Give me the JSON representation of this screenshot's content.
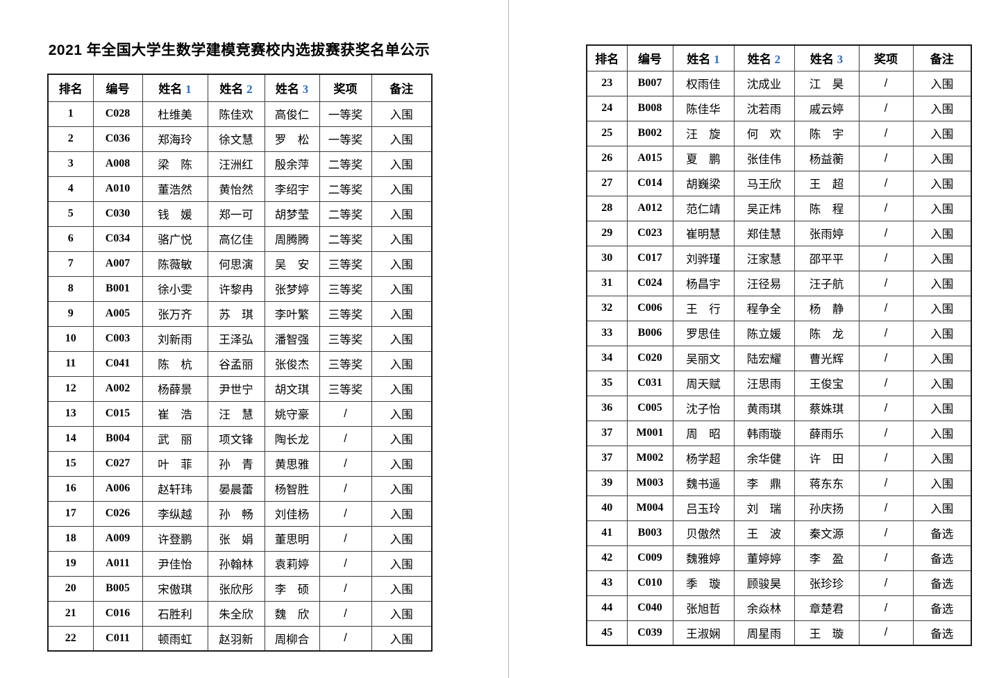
{
  "colors": {
    "header_digit_blue": "#2b6bc8",
    "grid_line": "#3c3c3c",
    "outer_border": "#1c1c1c",
    "page_divider": "#b9b9b9",
    "text": "#000000",
    "page_background": "#ffffff"
  },
  "left_page": {
    "title": "2021 年全国大学生数学建模竞赛校内选拔赛获奖名单公示",
    "columns": [
      "排名",
      "编号",
      "姓名 1",
      "姓名 2",
      "姓名 3",
      "奖项",
      "备注"
    ],
    "rows": [
      [
        "1",
        "C028",
        "杜维美",
        "陈佳欢",
        "高俊仁",
        "一等奖",
        "入围"
      ],
      [
        "2",
        "C036",
        "郑海玲",
        "徐文慧",
        "罗　松",
        "一等奖",
        "入围"
      ],
      [
        "3",
        "A008",
        "梁　陈",
        "汪洲红",
        "殷余萍",
        "二等奖",
        "入围"
      ],
      [
        "4",
        "A010",
        "董浩然",
        "黄怡然",
        "李绍宇",
        "二等奖",
        "入围"
      ],
      [
        "5",
        "C030",
        "钱　媛",
        "郑一可",
        "胡梦莹",
        "二等奖",
        "入围"
      ],
      [
        "6",
        "C034",
        "骆广悦",
        "高亿佳",
        "周腾腾",
        "二等奖",
        "入围"
      ],
      [
        "7",
        "A007",
        "陈薇敏",
        "何思演",
        "吴　安",
        "三等奖",
        "入围"
      ],
      [
        "8",
        "B001",
        "徐小雯",
        "许黎冉",
        "张梦婷",
        "三等奖",
        "入围"
      ],
      [
        "9",
        "A005",
        "张万齐",
        "苏　琪",
        "李叶繁",
        "三等奖",
        "入围"
      ],
      [
        "10",
        "C003",
        "刘新雨",
        "王泽弘",
        "潘智强",
        "三等奖",
        "入围"
      ],
      [
        "11",
        "C041",
        "陈　杭",
        "谷孟丽",
        "张俊杰",
        "三等奖",
        "入围"
      ],
      [
        "12",
        "A002",
        "杨薛景",
        "尹世宁",
        "胡文琪",
        "三等奖",
        "入围"
      ],
      [
        "13",
        "C015",
        "崔　浩",
        "汪　慧",
        "姚守豪",
        "/",
        "入围"
      ],
      [
        "14",
        "B004",
        "武　丽",
        "项文锋",
        "陶长龙",
        "/",
        "入围"
      ],
      [
        "15",
        "C027",
        "叶　菲",
        "孙　青",
        "黄思雅",
        "/",
        "入围"
      ],
      [
        "16",
        "A006",
        "赵轩玮",
        "晏晨蕾",
        "杨智胜",
        "/",
        "入围"
      ],
      [
        "17",
        "C026",
        "李纵越",
        "孙　畅",
        "刘佳杨",
        "/",
        "入围"
      ],
      [
        "18",
        "A009",
        "许登鹏",
        "张　娟",
        "董思明",
        "/",
        "入围"
      ],
      [
        "19",
        "A011",
        "尹佳怡",
        "孙翰林",
        "袁莉婷",
        "/",
        "入围"
      ],
      [
        "20",
        "B005",
        "宋傲琪",
        "张欣彤",
        "李　硕",
        "/",
        "入围"
      ],
      [
        "21",
        "C016",
        "石胜利",
        "朱全欣",
        "魏　欣",
        "/",
        "入围"
      ],
      [
        "22",
        "C011",
        "顿雨虹",
        "赵羽新",
        "周柳合",
        "/",
        "入围"
      ]
    ]
  },
  "right_page": {
    "columns": [
      "排名",
      "编号",
      "姓名 1",
      "姓名 2",
      "姓名 3",
      "奖项",
      "备注"
    ],
    "rows": [
      [
        "23",
        "B007",
        "权雨佳",
        "沈成业",
        "江　昊",
        "/",
        "入围"
      ],
      [
        "24",
        "B008",
        "陈佳华",
        "沈若雨",
        "戚云婷",
        "/",
        "入围"
      ],
      [
        "25",
        "B002",
        "汪　旋",
        "何　欢",
        "陈　宇",
        "/",
        "入围"
      ],
      [
        "26",
        "A015",
        "夏　鹏",
        "张佳伟",
        "杨益蘅",
        "/",
        "入围"
      ],
      [
        "27",
        "C014",
        "胡巍梁",
        "马王欣",
        "王　超",
        "/",
        "入围"
      ],
      [
        "28",
        "A012",
        "范仁靖",
        "吴正炜",
        "陈　程",
        "/",
        "入围"
      ],
      [
        "29",
        "C023",
        "崔明慧",
        "郑佳慧",
        "张雨婷",
        "/",
        "入围"
      ],
      [
        "30",
        "C017",
        "刘骅瑾",
        "汪家慧",
        "邵平平",
        "/",
        "入围"
      ],
      [
        "31",
        "C024",
        "杨昌宇",
        "汪径易",
        "汪子航",
        "/",
        "入围"
      ],
      [
        "32",
        "C006",
        "王　行",
        "程争全",
        "杨　静",
        "/",
        "入围"
      ],
      [
        "33",
        "B006",
        "罗思佳",
        "陈立媛",
        "陈　龙",
        "/",
        "入围"
      ],
      [
        "34",
        "C020",
        "吴丽文",
        "陆宏耀",
        "曹光辉",
        "/",
        "入围"
      ],
      [
        "35",
        "C031",
        "周天赋",
        "汪思雨",
        "王俊宝",
        "/",
        "入围"
      ],
      [
        "36",
        "C005",
        "沈子怡",
        "黄雨琪",
        "蔡姝琪",
        "/",
        "入围"
      ],
      [
        "37",
        "M001",
        "周　昭",
        "韩雨璇",
        "薛雨乐",
        "/",
        "入围"
      ],
      [
        "37",
        "M002",
        "杨学超",
        "余华健",
        "许　田",
        "/",
        "入围"
      ],
      [
        "39",
        "M003",
        "魏书遥",
        "李　鼎",
        "蒋东东",
        "/",
        "入围"
      ],
      [
        "40",
        "M004",
        "吕玉玲",
        "刘　瑞",
        "孙庆扬",
        "/",
        "入围"
      ],
      [
        "41",
        "B003",
        "贝傲然",
        "王　波",
        "秦文源",
        "/",
        "备选"
      ],
      [
        "42",
        "C009",
        "魏雅婷",
        "董婷婷",
        "李　盈",
        "/",
        "备选"
      ],
      [
        "43",
        "C010",
        "季　璇",
        "顾骏昊",
        "张珍珍",
        "/",
        "备选"
      ],
      [
        "44",
        "C040",
        "张旭哲",
        "余焱林",
        "章楚君",
        "/",
        "备选"
      ],
      [
        "45",
        "C039",
        "王淑娴",
        "周星雨",
        "王　璇",
        "/",
        "备选"
      ]
    ]
  }
}
